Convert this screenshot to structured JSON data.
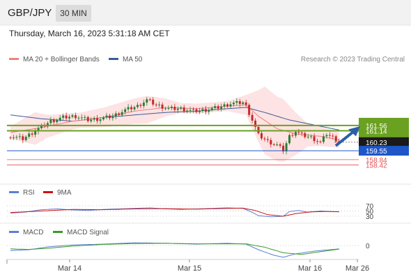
{
  "header": {
    "symbol": "GBP/JPY",
    "timeframe": "30 MIN"
  },
  "timestamp": "Thursday, March 16, 2023 5:31:18 AM CET",
  "legend": {
    "ma20": "MA 20 + Bollinger Bands",
    "ma50": "MA 50",
    "credit": "Research © 2023 Trading Central",
    "rsi": "RSI",
    "rsi9": "9MA",
    "macd": "MACD",
    "macd_signal": "MACD Signal"
  },
  "colors": {
    "ma20": "#f08080",
    "ma50": "#3a5a9a",
    "band_fill": "#fde0e0",
    "up": "#2e7d32",
    "down": "#c62828",
    "resistance": "#6aa121",
    "support": "#1e56c8",
    "target": "#e05050",
    "current": "#1a1a1a",
    "arrow": "#2a5fa8",
    "rsi": "#5b7fd4",
    "rsi9": "#d01010",
    "macd_signal": "#3c9a2a"
  },
  "chart_data": [
    {
      "type": "candlestick",
      "title": "GBP/JPY 30 MIN",
      "x_tick_labels": [
        "Mar 14",
        "Mar 15",
        "Mar 16",
        "Mar 26"
      ],
      "price_levels": [
        {
          "value": 161.56,
          "label": "161.56",
          "kind": "resistance"
        },
        {
          "value": 161.14,
          "label": "161.14",
          "kind": "resistance"
        },
        {
          "value": 160.23,
          "label": "160.23",
          "kind": "current"
        },
        {
          "value": 159.55,
          "label": "159.55",
          "kind": "support"
        },
        {
          "value": 158.84,
          "label": "158.84",
          "kind": "target"
        },
        {
          "value": 158.42,
          "label": "158.42",
          "kind": "target"
        }
      ],
      "close_anchors": [
        [
          0,
          160.7
        ],
        [
          4,
          160.5
        ],
        [
          9,
          161.3
        ],
        [
          13,
          161.9
        ],
        [
          17,
          162.2
        ],
        [
          21,
          162.3
        ],
        [
          25,
          162.0
        ],
        [
          29,
          162.1
        ],
        [
          33,
          162.3
        ],
        [
          37,
          162.8
        ],
        [
          41,
          163.1
        ],
        [
          44,
          163.6
        ],
        [
          47,
          163.2
        ],
        [
          51,
          162.9
        ],
        [
          55,
          162.9
        ],
        [
          59,
          162.7
        ],
        [
          63,
          162.8
        ],
        [
          67,
          163.0
        ],
        [
          71,
          163.3
        ],
        [
          75,
          163.4
        ],
        [
          76,
          163.1
        ],
        [
          78,
          162.0
        ],
        [
          80,
          160.8
        ],
        [
          83,
          160.3
        ],
        [
          86,
          160.0
        ],
        [
          88,
          159.6
        ],
        [
          90,
          160.7
        ],
        [
          92,
          161.1
        ],
        [
          94,
          160.8
        ],
        [
          97,
          160.6
        ],
        [
          100,
          160.2
        ],
        [
          102,
          160.9
        ],
        [
          104,
          160.6
        ],
        [
          106,
          160.3
        ]
      ],
      "ma20": [
        [
          0,
          161.0
        ],
        [
          10,
          161.4
        ],
        [
          20,
          161.9
        ],
        [
          30,
          162.2
        ],
        [
          40,
          162.7
        ],
        [
          50,
          163.0
        ],
        [
          60,
          162.9
        ],
        [
          70,
          163.1
        ],
        [
          76,
          163.2
        ],
        [
          80,
          162.3
        ],
        [
          86,
          161.3
        ],
        [
          92,
          160.9
        ],
        [
          100,
          160.7
        ],
        [
          106,
          160.4
        ]
      ],
      "ma50": [
        [
          0,
          162.4
        ],
        [
          10,
          162.1
        ],
        [
          20,
          161.9
        ],
        [
          30,
          162.2
        ],
        [
          40,
          162.4
        ],
        [
          50,
          162.6
        ],
        [
          60,
          162.7
        ],
        [
          70,
          162.9
        ],
        [
          76,
          163.0
        ],
        [
          82,
          162.6
        ],
        [
          90,
          162.0
        ],
        [
          100,
          161.5
        ],
        [
          106,
          161.2
        ]
      ],
      "bollinger_width": [
        [
          0,
          0.5
        ],
        [
          8,
          1.3
        ],
        [
          12,
          0.9
        ],
        [
          22,
          0.6
        ],
        [
          35,
          0.9
        ],
        [
          44,
          1.1
        ],
        [
          55,
          0.4
        ],
        [
          70,
          0.4
        ],
        [
          76,
          0.8
        ],
        [
          82,
          2.7
        ],
        [
          88,
          2.5
        ],
        [
          96,
          0.9
        ],
        [
          106,
          0.6
        ]
      ]
    },
    {
      "type": "line",
      "title": "RSI",
      "y_tick_labels": [
        "70",
        "50",
        "30"
      ],
      "rsi": [
        [
          0,
          42
        ],
        [
          5,
          46
        ],
        [
          10,
          55
        ],
        [
          15,
          58
        ],
        [
          20,
          54
        ],
        [
          25,
          52
        ],
        [
          30,
          56
        ],
        [
          35,
          58
        ],
        [
          40,
          60
        ],
        [
          45,
          62
        ],
        [
          50,
          58
        ],
        [
          55,
          56
        ],
        [
          60,
          58
        ],
        [
          65,
          60
        ],
        [
          70,
          62
        ],
        [
          75,
          60
        ],
        [
          78,
          45
        ],
        [
          80,
          32
        ],
        [
          84,
          28
        ],
        [
          88,
          30
        ],
        [
          90,
          48
        ],
        [
          93,
          52
        ],
        [
          96,
          45
        ],
        [
          100,
          50
        ],
        [
          103,
          48
        ],
        [
          106,
          47
        ]
      ],
      "rsi9": [
        [
          0,
          44
        ],
        [
          10,
          50
        ],
        [
          20,
          56
        ],
        [
          30,
          55
        ],
        [
          40,
          58
        ],
        [
          50,
          59
        ],
        [
          60,
          57
        ],
        [
          70,
          60
        ],
        [
          75,
          61
        ],
        [
          79,
          52
        ],
        [
          83,
          36
        ],
        [
          88,
          30
        ],
        [
          92,
          40
        ],
        [
          97,
          47
        ],
        [
          102,
          48
        ],
        [
          106,
          47
        ]
      ]
    },
    {
      "type": "line",
      "title": "MACD",
      "y_tick_labels": [
        "0"
      ],
      "macd": [
        [
          0,
          -0.18
        ],
        [
          6,
          -0.15
        ],
        [
          12,
          -0.05
        ],
        [
          20,
          0.02
        ],
        [
          30,
          0.05
        ],
        [
          40,
          0.1
        ],
        [
          50,
          0.08
        ],
        [
          60,
          0.05
        ],
        [
          70,
          0.08
        ],
        [
          76,
          0.05
        ],
        [
          80,
          -0.15
        ],
        [
          85,
          -0.35
        ],
        [
          88,
          -0.42
        ],
        [
          92,
          -0.3
        ],
        [
          98,
          -0.2
        ],
        [
          106,
          -0.12
        ]
      ],
      "macd_signal": [
        [
          0,
          -0.12
        ],
        [
          6,
          -0.14
        ],
        [
          12,
          -0.1
        ],
        [
          20,
          -0.02
        ],
        [
          30,
          0.04
        ],
        [
          40,
          0.07
        ],
        [
          50,
          0.08
        ],
        [
          60,
          0.06
        ],
        [
          70,
          0.06
        ],
        [
          76,
          0.06
        ],
        [
          82,
          -0.06
        ],
        [
          88,
          -0.26
        ],
        [
          94,
          -0.32
        ],
        [
          100,
          -0.22
        ],
        [
          106,
          -0.13
        ]
      ]
    }
  ]
}
